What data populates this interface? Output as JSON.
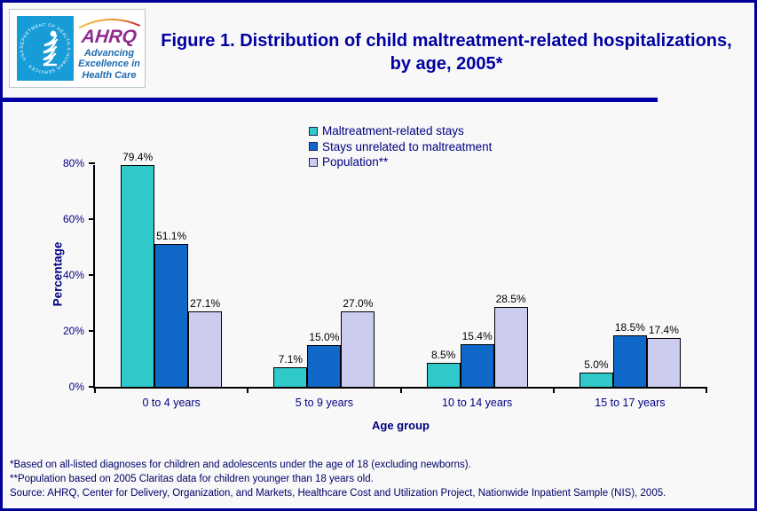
{
  "header": {
    "logo": {
      "seal_text": "DEPARTMENT OF HEALTH & HUMAN SERVICES · USA",
      "ahrq_acronym": "AHRQ",
      "ahrq_tagline": "Advancing\nExcellence in\nHealth Care"
    },
    "title": "Figure 1. Distribution of child maltreatment-related hospitalizations, by age, 2005*"
  },
  "chart_data": {
    "type": "bar",
    "title": "",
    "categories": [
      "0 to 4 years",
      "5 to 9 years",
      "10 to 14 years",
      "15 to 17 years"
    ],
    "series": [
      {
        "name": "Maltreatment-related stays",
        "color": "#2FC9C9",
        "values": [
          79.4,
          7.1,
          8.5,
          5.0
        ]
      },
      {
        "name": "Stays unrelated to maltreatment",
        "color": "#1069C8",
        "values": [
          51.1,
          15.0,
          15.4,
          18.5
        ]
      },
      {
        "name": "Population**",
        "color": "#CCCCF0",
        "values": [
          27.1,
          27.0,
          28.5,
          17.4
        ]
      }
    ],
    "xlabel": "Age group",
    "ylabel": "Percentage",
    "ylim": [
      0,
      80
    ],
    "yticks": [
      "0%",
      "20%",
      "40%",
      "60%",
      "80%"
    ],
    "grid": false,
    "legend_position": "top-center",
    "data_label_format": "one-decimal-percent"
  },
  "footnotes": [
    "*Based on all-listed diagnoses for children and adolescents under the age of 18 (excluding newborns).",
    "**Population based on 2005 Claritas data for children younger than 18 years old.",
    "Source: AHRQ, Center for Delivery, Organization, and Markets, Healthcare Cost and Utilization Project, Nationwide Inpatient Sample (NIS), 2005."
  ],
  "colors": {
    "page_border": "#000099",
    "header_rule": "#0000A6",
    "title_text": "#0000A0",
    "axis_text": "#000080",
    "footnote_text": "#000066",
    "hhs_cyan": "#189CD8",
    "ahrq_purple": "#8E2C90",
    "ahrq_tagline_blue": "#1D6AB0",
    "bar_border": "#000000"
  }
}
